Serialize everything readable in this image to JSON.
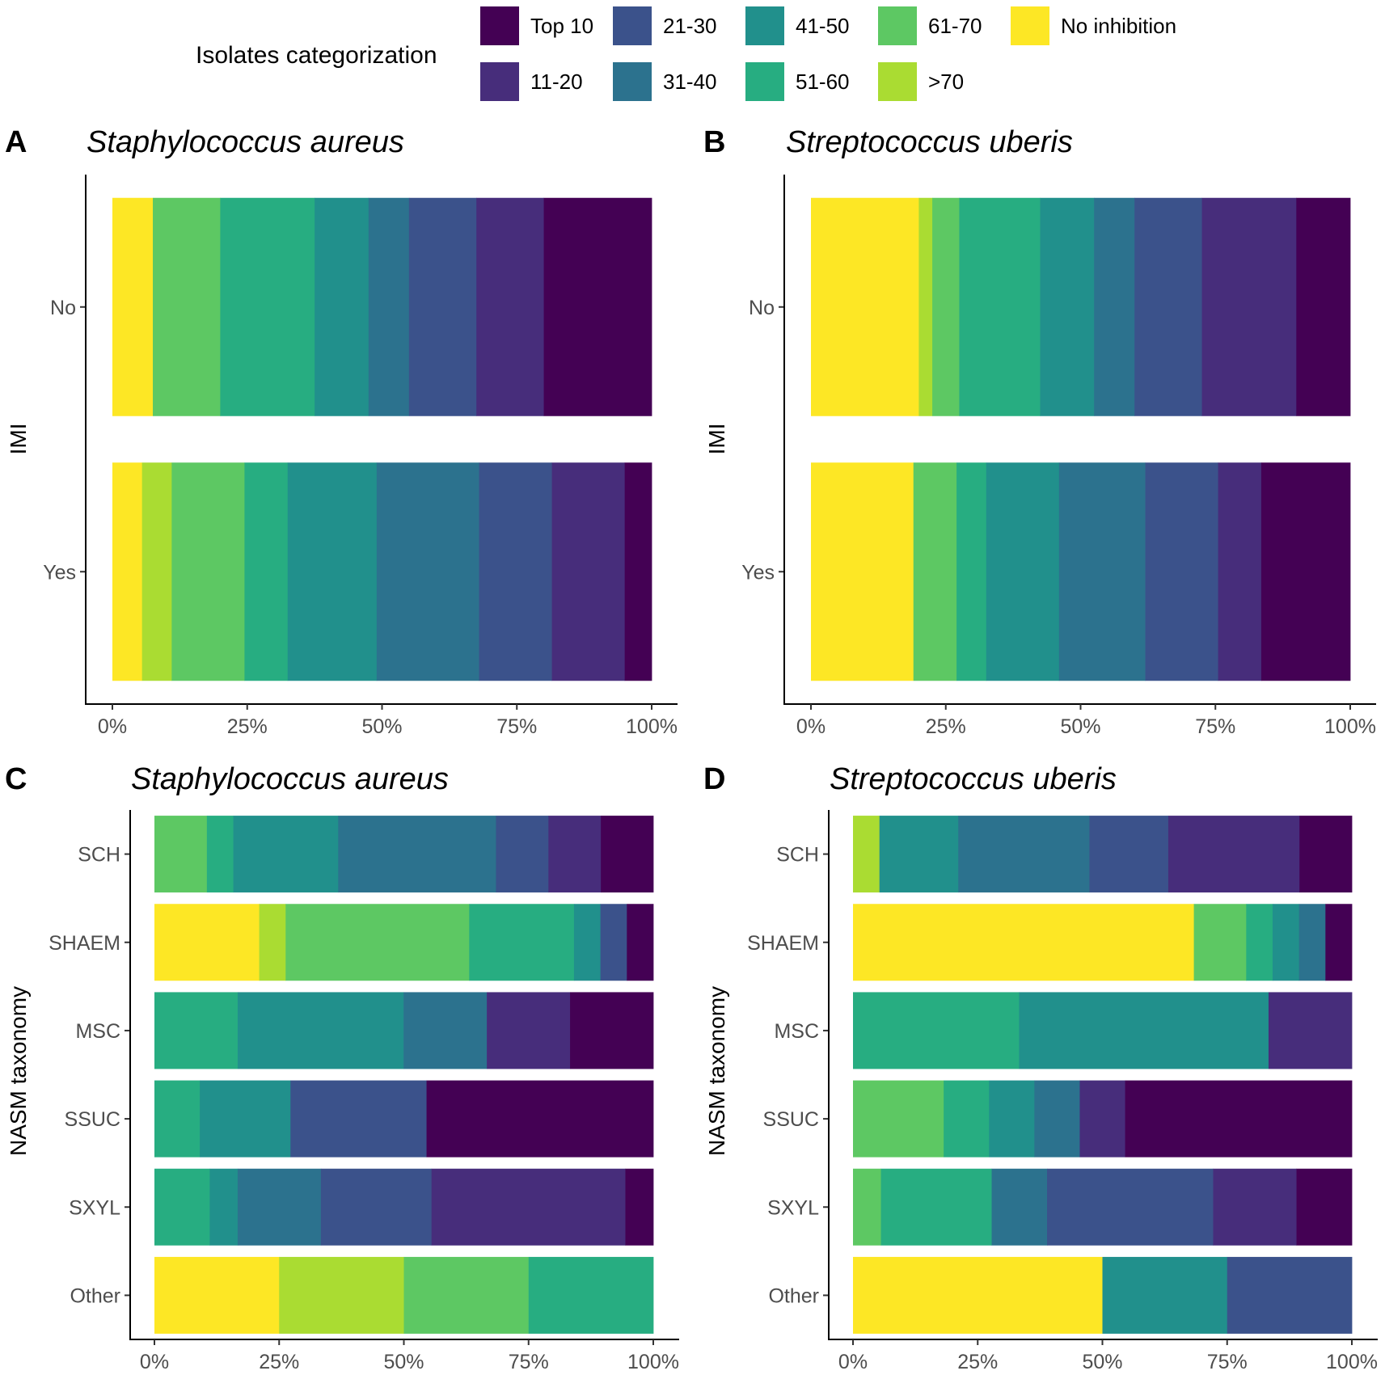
{
  "legend": {
    "title": "Isolates categorization",
    "items": [
      {
        "label": "Top 10",
        "color": "#440154"
      },
      {
        "label": "11-20",
        "color": "#472D7B"
      },
      {
        "label": "21-30",
        "color": "#3B528B"
      },
      {
        "label": "31-40",
        "color": "#2C728E"
      },
      {
        "label": "41-50",
        "color": "#21908C"
      },
      {
        "label": "51-60",
        "color": "#27AD81"
      },
      {
        "label": "61-70",
        "color": "#5DC863"
      },
      {
        "label": ">70",
        "color": "#AADC32"
      },
      {
        "label": "No inhibition",
        "color": "#FDE725"
      }
    ]
  },
  "chart_data": [
    {
      "panel": "A",
      "type": "bar",
      "orientation": "horizontal",
      "stacked": "percent",
      "title": "Staphylococcus aureus",
      "ylabel": "IMI",
      "xlabel": "",
      "xlim": [
        0,
        100
      ],
      "xticks": [
        "0%",
        "25%",
        "50%",
        "75%",
        "100%"
      ],
      "categories": [
        "No",
        "Yes"
      ],
      "series": [
        {
          "name": "No inhibition",
          "values": [
            7.5,
            5.5
          ]
        },
        {
          "name": ">70",
          "values": [
            0,
            5.5
          ]
        },
        {
          "name": "61-70",
          "values": [
            12.5,
            13.5
          ]
        },
        {
          "name": "51-60",
          "values": [
            17.5,
            8
          ]
        },
        {
          "name": "41-50",
          "values": [
            10,
            16.5
          ]
        },
        {
          "name": "31-40",
          "values": [
            7.5,
            19
          ]
        },
        {
          "name": "21-30",
          "values": [
            12.5,
            13.5
          ]
        },
        {
          "name": "11-20",
          "values": [
            12.5,
            13.5
          ]
        },
        {
          "name": "Top 10",
          "values": [
            20,
            5
          ]
        }
      ]
    },
    {
      "panel": "B",
      "type": "bar",
      "orientation": "horizontal",
      "stacked": "percent",
      "title": "Streptococcus uberis",
      "ylabel": "IMI",
      "xlabel": "",
      "xlim": [
        0,
        100
      ],
      "xticks": [
        "0%",
        "25%",
        "50%",
        "75%",
        "100%"
      ],
      "categories": [
        "No",
        "Yes"
      ],
      "series": [
        {
          "name": "No inhibition",
          "values": [
            20,
            19
          ]
        },
        {
          "name": ">70",
          "values": [
            2.5,
            0
          ]
        },
        {
          "name": "61-70",
          "values": [
            5,
            8
          ]
        },
        {
          "name": "51-60",
          "values": [
            15,
            5.5
          ]
        },
        {
          "name": "41-50",
          "values": [
            10,
            13.5
          ]
        },
        {
          "name": "31-40",
          "values": [
            7.5,
            16
          ]
        },
        {
          "name": "21-30",
          "values": [
            12.5,
            13.5
          ]
        },
        {
          "name": "11-20",
          "values": [
            17.5,
            8
          ]
        },
        {
          "name": "Top 10",
          "values": [
            10,
            16.5
          ]
        }
      ]
    },
    {
      "panel": "C",
      "type": "bar",
      "orientation": "horizontal",
      "stacked": "percent",
      "title": "Staphylococcus aureus",
      "ylabel": "NASM taxonomy",
      "xlabel": "",
      "xlim": [
        0,
        100
      ],
      "xticks": [
        "0%",
        "25%",
        "50%",
        "75%",
        "100%"
      ],
      "categories": [
        "SCH",
        "SHAEM",
        "MSC",
        "SSUC",
        "SXYL",
        "Other"
      ],
      "series": [
        {
          "name": "No inhibition",
          "values": [
            0,
            21,
            0,
            0,
            0,
            25
          ]
        },
        {
          "name": ">70",
          "values": [
            0,
            5.3,
            0,
            0,
            0,
            25
          ]
        },
        {
          "name": "61-70",
          "values": [
            10.5,
            36.8,
            0,
            0,
            0,
            25
          ]
        },
        {
          "name": "51-60",
          "values": [
            5.3,
            21,
            16.7,
            9.1,
            11.1,
            25
          ]
        },
        {
          "name": "41-50",
          "values": [
            21,
            5.3,
            33.3,
            18.2,
            5.6,
            0
          ]
        },
        {
          "name": "31-40",
          "values": [
            31.6,
            0,
            16.7,
            0,
            16.7,
            0
          ]
        },
        {
          "name": "21-30",
          "values": [
            10.5,
            5.3,
            0,
            27.3,
            22.2,
            0
          ]
        },
        {
          "name": "11-20",
          "values": [
            10.5,
            0,
            16.7,
            0,
            38.9,
            0
          ]
        },
        {
          "name": "Top 10",
          "values": [
            10.5,
            5.3,
            16.7,
            45.5,
            5.6,
            0
          ]
        }
      ]
    },
    {
      "panel": "D",
      "type": "bar",
      "orientation": "horizontal",
      "stacked": "percent",
      "title": "Streptococcus uberis",
      "ylabel": "NASM taxonomy",
      "xlabel": "",
      "xlim": [
        0,
        100
      ],
      "xticks": [
        "0%",
        "25%",
        "50%",
        "75%",
        "100%"
      ],
      "categories": [
        "SCH",
        "SHAEM",
        "MSC",
        "SSUC",
        "SXYL",
        "Other"
      ],
      "series": [
        {
          "name": "No inhibition",
          "values": [
            0,
            68.4,
            0,
            0,
            0,
            50
          ]
        },
        {
          "name": ">70",
          "values": [
            5.3,
            0,
            0,
            0,
            0,
            0
          ]
        },
        {
          "name": "61-70",
          "values": [
            0,
            10.5,
            0,
            18.2,
            5.6,
            0
          ]
        },
        {
          "name": "51-60",
          "values": [
            0,
            5.3,
            33.3,
            9.1,
            22.2,
            0
          ]
        },
        {
          "name": "41-50",
          "values": [
            15.8,
            5.3,
            50,
            9.1,
            0,
            25
          ]
        },
        {
          "name": "31-40",
          "values": [
            26.3,
            5.3,
            0,
            9.1,
            11.1,
            0
          ]
        },
        {
          "name": "21-30",
          "values": [
            15.8,
            0,
            0,
            0,
            33.3,
            25
          ]
        },
        {
          "name": "11-20",
          "values": [
            26.3,
            0,
            16.7,
            9.1,
            16.7,
            0
          ]
        },
        {
          "name": "Top 10",
          "values": [
            10.5,
            5.3,
            0,
            45.5,
            11.1,
            0
          ]
        }
      ]
    }
  ]
}
